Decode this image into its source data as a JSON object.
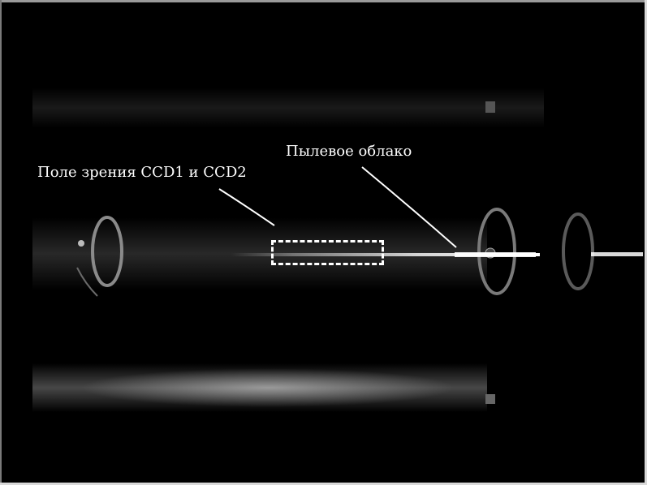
{
  "image": {
    "description_free": true
  },
  "annotations": {
    "field_of_view_label": "Поле зрения CCD1 и CCD2",
    "dust_cloud_label": "Пылевое облако"
  },
  "colors": {
    "background": "#000000",
    "annotation": "#ffffff",
    "glow": "#e8e8e8"
  }
}
